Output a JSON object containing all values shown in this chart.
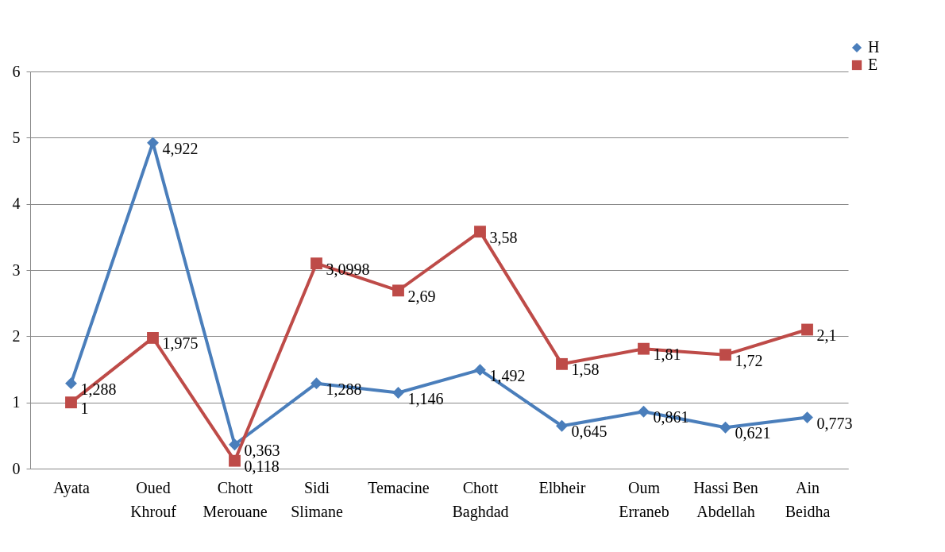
{
  "chart_data": {
    "type": "line",
    "categories": [
      "Ayata",
      "Oued\nKhrouf",
      "Chott\nMerouane",
      "Sidi\nSlimane",
      "Temacine",
      "Chott\nBaghdad",
      "Elbheir",
      "Oum\nErraneb",
      "Hassi Ben\nAbdellah",
      "Ain\nBeidha"
    ],
    "series": [
      {
        "name": "H",
        "color": "#4a7ebb",
        "marker": "diamond",
        "values": [
          1.288,
          4.922,
          0.363,
          1.288,
          1.146,
          1.492,
          0.645,
          0.861,
          0.621,
          0.773
        ],
        "value_labels": [
          "1,288",
          "4,922",
          "0,363",
          "1,288",
          "1,146",
          "1,492",
          "0,645",
          "0,861",
          "0,621",
          "0,773"
        ]
      },
      {
        "name": "E",
        "color": "#be4b48",
        "marker": "square",
        "values": [
          1,
          1.975,
          0.118,
          3.0998,
          2.69,
          3.58,
          1.58,
          1.81,
          1.72,
          2.1
        ],
        "value_labels": [
          "1",
          "1,975",
          "0,118",
          "3,0998",
          "2,69",
          "3,58",
          "1,58",
          "1,81",
          "1,72",
          "2,1"
        ]
      }
    ],
    "ylim": [
      0,
      6
    ],
    "yticks": [
      0,
      1,
      2,
      3,
      4,
      5,
      6
    ],
    "grid": "y",
    "legend": "top right",
    "line_style": "solid"
  }
}
